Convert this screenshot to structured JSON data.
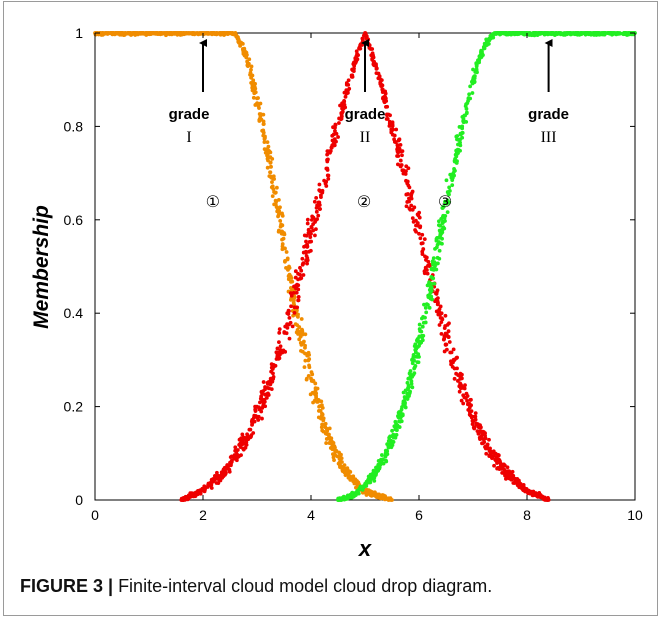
{
  "caption": {
    "label": "FIGURE 3 |",
    "text": " Finite-interval cloud model cloud drop diagram."
  },
  "chart_data": {
    "type": "scatter",
    "title": "",
    "xlabel": "x",
    "ylabel": "Membership",
    "xlim": [
      0,
      10
    ],
    "ylim": [
      0,
      1
    ],
    "xticks": [
      "0",
      "2",
      "4",
      "6",
      "8",
      "10"
    ],
    "yticks": [
      "0",
      "0.2",
      "0.4",
      "0.6",
      "0.8",
      "1"
    ],
    "grid": false,
    "series": [
      {
        "id": "grade-I",
        "color": "#f08c00",
        "x": [
          0.0,
          0.5,
          1.0,
          1.5,
          2.0,
          2.5,
          2.6,
          2.8,
          3.0,
          3.2,
          3.4,
          3.6,
          3.8,
          4.0,
          4.2,
          4.4,
          4.6,
          4.8,
          5.0,
          5.2,
          5.5
        ],
        "y": [
          1.0,
          1.0,
          1.0,
          1.0,
          1.0,
          1.0,
          1.0,
          0.95,
          0.86,
          0.74,
          0.61,
          0.48,
          0.36,
          0.26,
          0.18,
          0.11,
          0.07,
          0.04,
          0.02,
          0.01,
          0.0
        ]
      },
      {
        "id": "grade-II",
        "color": "#ee0000",
        "x": [
          1.6,
          2.0,
          2.4,
          2.8,
          3.2,
          3.6,
          4.0,
          4.4,
          4.8,
          5.0,
          5.2,
          5.6,
          6.0,
          6.4,
          6.8,
          7.2,
          7.6,
          8.0,
          8.4
        ],
        "y": [
          0.0,
          0.02,
          0.06,
          0.13,
          0.24,
          0.39,
          0.57,
          0.76,
          0.93,
          1.0,
          0.93,
          0.76,
          0.57,
          0.39,
          0.24,
          0.13,
          0.06,
          0.02,
          0.0
        ]
      },
      {
        "id": "grade-III",
        "color": "#22ee22",
        "x": [
          4.5,
          4.8,
          5.0,
          5.2,
          5.4,
          5.6,
          5.8,
          6.0,
          6.2,
          6.4,
          6.6,
          6.8,
          7.0,
          7.2,
          7.4,
          7.5,
          8.0,
          8.5,
          9.0,
          9.5,
          10.0
        ],
        "y": [
          0.0,
          0.01,
          0.03,
          0.06,
          0.1,
          0.16,
          0.24,
          0.33,
          0.45,
          0.57,
          0.69,
          0.8,
          0.9,
          0.97,
          1.0,
          1.0,
          1.0,
          1.0,
          1.0,
          1.0,
          1.0
        ]
      }
    ],
    "annotations": [
      {
        "word": "grade",
        "numeral": "I",
        "x": 2.0,
        "y": 1.0
      },
      {
        "word": "grade",
        "numeral": "II",
        "x": 5.0,
        "y": 1.0
      },
      {
        "word": "grade",
        "numeral": "III",
        "x": 8.4,
        "y": 1.0
      }
    ],
    "curve_labels": [
      {
        "text": "①",
        "x": 2.7,
        "y": 0.64
      },
      {
        "text": "②",
        "x": 5.5,
        "y": 0.64
      },
      {
        "text": "③",
        "x": 7.0,
        "y": 0.64
      }
    ]
  }
}
